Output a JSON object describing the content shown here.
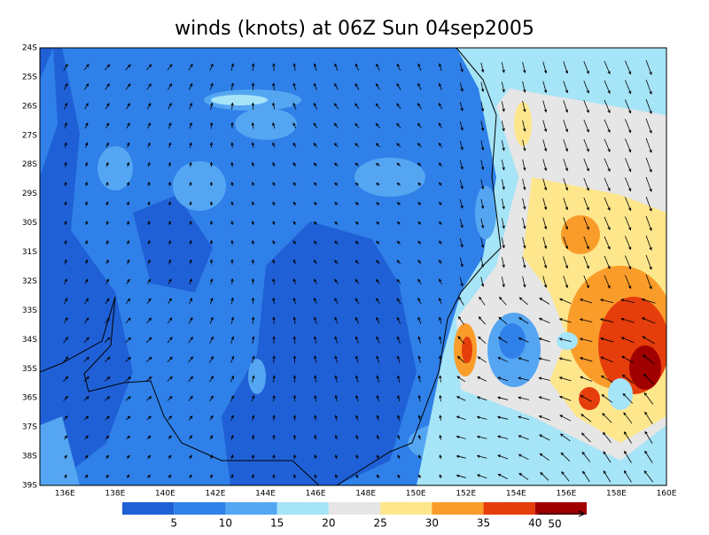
{
  "title": "winds (knots) at 06Z Sun 04sep2005",
  "lat_labels": [
    "24S",
    "25S",
    "26S",
    "27S",
    "28S",
    "29S",
    "30S",
    "31S",
    "32S",
    "33S",
    "34S",
    "35S",
    "36S",
    "37S",
    "38S",
    "39S"
  ],
  "lon_labels": [
    "136E",
    "138E",
    "140E",
    "142E",
    "144E",
    "146E",
    "148E",
    "150E",
    "152E",
    "154E",
    "156E",
    "158E",
    "160E"
  ],
  "colorbar": {
    "labels": [
      "5",
      "10",
      "15",
      "20",
      "25",
      "30",
      "35",
      "40"
    ],
    "colors": [
      "#1f60d6",
      "#2f80e8",
      "#55a6f2",
      "#a6e4f7",
      "#e6e6e6",
      "#fde68c",
      "#fa9c2a",
      "#e63d0c",
      "#a00000"
    ]
  },
  "reference_vector": "50"
}
